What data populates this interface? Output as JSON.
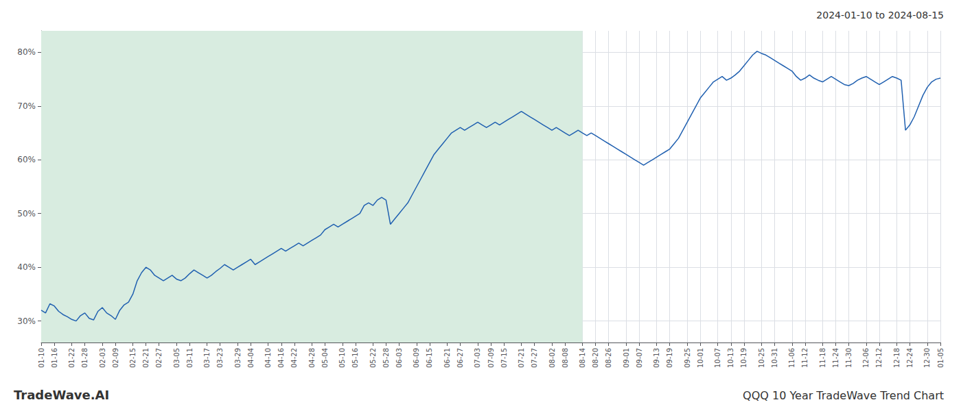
{
  "chart_data": {
    "type": "line",
    "title": "QQQ 10 Year TradeWave Trend Chart",
    "subtitle": "2024-01-10 to 2024-08-15",
    "annotations": [
      "TradeWave.AI"
    ],
    "categories": [
      "01-10",
      null,
      null,
      "01-16",
      null,
      null,
      null,
      "01-22",
      null,
      null,
      "01-28",
      null,
      null,
      null,
      "02-03",
      null,
      null,
      "02-09",
      null,
      null,
      null,
      "02-15",
      null,
      null,
      "02-21",
      null,
      null,
      "02-27",
      null,
      null,
      null,
      "03-05",
      null,
      null,
      "03-11",
      null,
      null,
      null,
      "03-17",
      null,
      null,
      "03-23",
      null,
      null,
      null,
      "03-29",
      null,
      null,
      "04-04",
      null,
      null,
      null,
      "04-10",
      null,
      null,
      "04-16",
      null,
      null,
      "04-22",
      null,
      null,
      null,
      "04-28",
      null,
      null,
      "05-04",
      null,
      null,
      null,
      "05-10",
      null,
      null,
      "05-16",
      null,
      null,
      null,
      "05-22",
      null,
      null,
      "05-28",
      null,
      null,
      "06-03",
      null,
      null,
      null,
      "06-09",
      null,
      null,
      "06-15",
      null,
      null,
      null,
      "06-21",
      null,
      null,
      "06-27",
      null,
      null,
      null,
      "07-03",
      null,
      null,
      "07-09",
      null,
      null,
      "07-15",
      null,
      null,
      null,
      "07-21",
      null,
      null,
      "07-27",
      null,
      null,
      null,
      "08-02",
      null,
      null,
      "08-08",
      null,
      null,
      null,
      "08-14",
      null,
      null,
      "08-20",
      null,
      null,
      "08-26",
      null,
      null,
      null,
      "09-01",
      null,
      null,
      "09-07",
      null,
      null,
      null,
      "09-13",
      null,
      null,
      "09-19",
      null,
      null,
      null,
      "09-25",
      null,
      null,
      "10-01",
      null,
      null,
      null,
      "10-07",
      null,
      null,
      "10-13",
      null,
      null,
      "10-19",
      null,
      null,
      null,
      "10-25",
      null,
      null,
      "10-31",
      null,
      null,
      null,
      "11-06",
      null,
      null,
      "11-12",
      null,
      null,
      null,
      "11-18",
      null,
      null,
      "11-24",
      null,
      null,
      "11-30",
      null,
      null,
      null,
      "12-06",
      null,
      null,
      "12-12",
      null,
      null,
      null,
      "12-18",
      null,
      null,
      "12-24",
      null,
      null,
      null,
      "12-30",
      null,
      null,
      "01-05"
    ],
    "values": [
      32.0,
      31.5,
      33.2,
      32.8,
      31.8,
      31.2,
      30.8,
      30.3,
      30.0,
      31.0,
      31.5,
      30.5,
      30.2,
      31.8,
      32.5,
      31.5,
      31.0,
      30.3,
      32.0,
      33.0,
      33.5,
      35.0,
      37.5,
      39.0,
      40.0,
      39.5,
      38.5,
      38.0,
      37.5,
      38.0,
      38.5,
      37.8,
      37.5,
      38.0,
      38.8,
      39.5,
      39.0,
      38.5,
      38.0,
      38.5,
      39.2,
      39.8,
      40.5,
      40.0,
      39.5,
      40.0,
      40.5,
      41.0,
      41.5,
      40.5,
      41.0,
      41.5,
      42.0,
      42.5,
      43.0,
      43.5,
      43.0,
      43.5,
      44.0,
      44.5,
      44.0,
      44.5,
      45.0,
      45.5,
      46.0,
      47.0,
      47.5,
      48.0,
      47.5,
      48.0,
      48.5,
      49.0,
      49.5,
      50.0,
      51.5,
      52.0,
      51.5,
      52.5,
      53.0,
      52.5,
      48.0,
      49.0,
      50.0,
      51.0,
      52.0,
      53.5,
      55.0,
      56.5,
      58.0,
      59.5,
      61.0,
      62.0,
      63.0,
      64.0,
      65.0,
      65.5,
      66.0,
      65.5,
      66.0,
      66.5,
      67.0,
      66.5,
      66.0,
      66.5,
      67.0,
      66.5,
      67.0,
      67.5,
      68.0,
      68.5,
      69.0,
      68.5,
      68.0,
      67.5,
      67.0,
      66.5,
      66.0,
      65.5,
      66.0,
      65.5,
      65.0,
      64.5,
      65.0,
      65.5,
      65.0,
      64.5,
      65.0,
      64.5,
      64.0,
      63.5,
      63.0,
      62.5,
      62.0,
      61.5,
      61.0,
      60.5,
      60.0,
      59.5,
      59.0,
      59.5,
      60.0,
      60.5,
      61.0,
      61.5,
      62.0,
      63.0,
      64.0,
      65.5,
      67.0,
      68.5,
      70.0,
      71.5,
      72.5,
      73.5,
      74.5,
      75.0,
      75.5,
      74.8,
      75.2,
      75.8,
      76.5,
      77.5,
      78.5,
      79.5,
      80.2,
      79.8,
      79.5,
      79.0,
      78.5,
      78.0,
      77.5,
      77.0,
      76.5,
      75.5,
      74.8,
      75.2,
      75.8,
      75.2,
      74.8,
      74.5,
      75.0,
      75.5,
      75.0,
      74.5,
      74.0,
      73.8,
      74.2,
      74.8,
      75.2,
      75.5,
      75.0,
      74.5,
      74.0,
      74.5,
      75.0,
      75.5,
      75.2,
      74.8,
      65.5,
      66.5,
      68.0,
      70.0,
      72.0,
      73.5,
      74.5,
      75.0,
      75.2
    ],
    "color": "#2060b0",
    "ylim": [
      26,
      84
    ],
    "yticks": [
      {
        "value": 30,
        "label": "30%"
      },
      {
        "value": 40,
        "label": "40%"
      },
      {
        "value": 50,
        "label": "50%"
      },
      {
        "value": 60,
        "label": "60%"
      },
      {
        "value": 70,
        "label": "70%"
      },
      {
        "value": 80,
        "label": "80%"
      }
    ],
    "grid": true,
    "shade": {
      "from": "01-10",
      "to": "08-14",
      "color": "#d8ece0"
    }
  }
}
